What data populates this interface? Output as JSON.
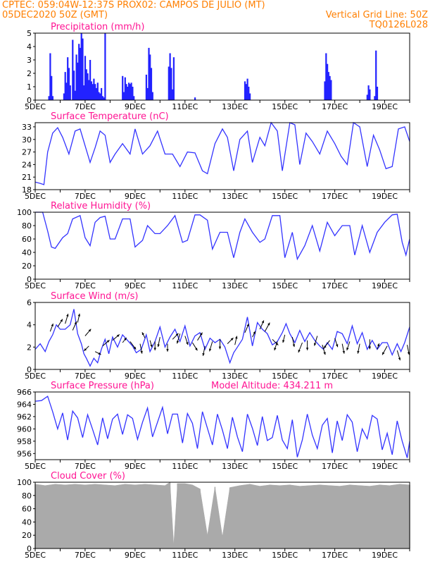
{
  "header": {
    "line1_left": "CPTEC:   059:04W-12:37S   PROX02: CAMPOS DE JULIO (MT)",
    "line2_left": "05DEC2020 50Z (GMT)",
    "line2_right": "Vertical Grid Line: 50Z",
    "line3_right": "TQ0126L028"
  },
  "x_axis": {
    "labels": [
      "5DEC",
      "7DEC",
      "9DEC",
      "11DEC",
      "13DEC",
      "15DEC",
      "17DEC",
      "19DEC"
    ],
    "label_days": [
      5,
      7,
      9,
      11,
      13,
      15,
      17,
      19
    ],
    "range": [
      5.0,
      20.0
    ]
  },
  "colors": {
    "line": "#3333ff",
    "bar": "#2222ff",
    "cloud": "#aaaaaa",
    "title": "#ff1493",
    "header": "#ff7f00"
  },
  "chart_data": [
    {
      "type": "bar",
      "title": "Precipitation (mm/h)",
      "ylim": [
        0,
        5
      ],
      "yticks": [
        "0",
        "1",
        "2",
        "3",
        "4",
        "5"
      ],
      "x_day": [
        5.55,
        5.6,
        5.65,
        5.7,
        6.15,
        6.2,
        6.25,
        6.3,
        6.35,
        6.4,
        6.5,
        6.55,
        6.6,
        6.65,
        6.7,
        6.75,
        6.8,
        6.85,
        6.9,
        6.95,
        7.0,
        7.05,
        7.1,
        7.15,
        7.2,
        7.25,
        7.3,
        7.35,
        7.4,
        7.45,
        7.5,
        7.55,
        7.6,
        7.65,
        7.7,
        7.75,
        7.8,
        8.5,
        8.55,
        8.6,
        8.65,
        8.7,
        8.75,
        8.8,
        8.85,
        8.9,
        8.95,
        9.45,
        9.5,
        9.55,
        9.6,
        9.65,
        9.7,
        10.35,
        10.4,
        10.45,
        10.5,
        10.55,
        11.4,
        13.4,
        13.45,
        13.5,
        13.55,
        13.6,
        16.6,
        16.65,
        16.7,
        16.75,
        16.8,
        16.85,
        18.3,
        18.35,
        18.4,
        18.6,
        18.65,
        18.7
      ],
      "values": [
        0.3,
        3.5,
        1.8,
        0.3,
        0.5,
        2.1,
        1.3,
        3.2,
        2.4,
        1.1,
        4.5,
        2.2,
        0.7,
        3.4,
        2.8,
        4.2,
        3.9,
        5.0,
        4.6,
        1.1,
        3.3,
        2.3,
        2.0,
        1.5,
        3.0,
        1.4,
        1.2,
        1.6,
        1.2,
        0.9,
        1.3,
        0.6,
        0.5,
        0.9,
        0.3,
        0.2,
        5.0,
        1.8,
        0.6,
        1.7,
        1.2,
        1.0,
        1.3,
        1.2,
        1.3,
        1.0,
        0.3,
        1.9,
        0.9,
        3.9,
        3.4,
        2.4,
        0.6,
        2.5,
        3.5,
        2.4,
        0.8,
        3.2,
        0.2,
        1.4,
        1.2,
        1.6,
        1.0,
        0.5,
        1.4,
        3.5,
        2.7,
        2.1,
        1.8,
        1.5,
        0.4,
        1.1,
        0.8,
        0.3,
        3.7,
        1.0
      ]
    },
    {
      "type": "line",
      "title": "Surface Temperature (nC)",
      "ylim": [
        18,
        34
      ],
      "yticks": [
        "18",
        "21",
        "24",
        "27",
        "30",
        "33"
      ],
      "x_day": [
        5.0,
        5.2,
        5.35,
        5.5,
        5.7,
        5.9,
        6.1,
        6.35,
        6.6,
        6.8,
        7.0,
        7.2,
        7.4,
        7.6,
        7.8,
        8.0,
        8.2,
        8.5,
        8.8,
        9.0,
        9.3,
        9.6,
        9.9,
        10.2,
        10.5,
        10.8,
        11.1,
        11.4,
        11.7,
        11.9,
        12.2,
        12.5,
        12.7,
        12.95,
        13.2,
        13.5,
        13.7,
        14.0,
        14.2,
        14.45,
        14.7,
        14.9,
        15.2,
        15.4,
        15.6,
        15.85,
        16.1,
        16.4,
        16.7,
        17.0,
        17.25,
        17.5,
        17.75,
        18.0,
        18.3,
        18.55,
        18.8,
        19.05,
        19.3,
        19.55,
        19.8,
        20.0
      ],
      "values": [
        19.8,
        19.5,
        19.2,
        27.0,
        31.5,
        32.8,
        30.5,
        26.5,
        32.0,
        32.5,
        28.5,
        24.5,
        28.0,
        32.0,
        31.0,
        24.5,
        26.5,
        29.0,
        26.5,
        32.5,
        26.5,
        28.5,
        32.0,
        26.5,
        26.5,
        23.5,
        27.0,
        26.8,
        22.5,
        21.8,
        29.0,
        32.5,
        30.5,
        22.5,
        30.0,
        32.0,
        24.5,
        30.5,
        28.5,
        34.0,
        32.0,
        22.5,
        34.0,
        33.5,
        24.0,
        31.5,
        29.5,
        26.5,
        32.0,
        29.0,
        26.0,
        24.0,
        34.0,
        33.0,
        23.5,
        31.0,
        27.5,
        23.0,
        23.5,
        32.5,
        33.0,
        29.5
      ]
    },
    {
      "type": "line",
      "title": "Relative Humidity (%)",
      "ylim": [
        0,
        100
      ],
      "yticks": [
        "0",
        "20",
        "40",
        "60",
        "80",
        "100"
      ],
      "x_day": [
        5.0,
        5.3,
        5.5,
        5.65,
        5.8,
        6.1,
        6.3,
        6.5,
        6.8,
        7.0,
        7.2,
        7.4,
        7.6,
        7.8,
        8.0,
        8.2,
        8.5,
        8.8,
        9.0,
        9.3,
        9.5,
        9.8,
        10.0,
        10.3,
        10.6,
        10.9,
        11.1,
        11.4,
        11.6,
        11.9,
        12.1,
        12.4,
        12.7,
        12.95,
        13.2,
        13.4,
        13.7,
        14.0,
        14.2,
        14.5,
        14.8,
        15.0,
        15.3,
        15.5,
        15.8,
        16.1,
        16.4,
        16.7,
        17.0,
        17.3,
        17.6,
        17.8,
        18.1,
        18.4,
        18.7,
        19.0,
        19.3,
        19.5,
        19.7,
        19.85,
        20.0
      ],
      "values": [
        100,
        100,
        72,
        48,
        46,
        62,
        68,
        90,
        95,
        62,
        50,
        85,
        92,
        94,
        60,
        60,
        90,
        90,
        48,
        58,
        80,
        68,
        68,
        80,
        95,
        55,
        58,
        96,
        96,
        88,
        45,
        70,
        70,
        32,
        70,
        90,
        70,
        55,
        60,
        95,
        95,
        32,
        70,
        30,
        50,
        80,
        42,
        85,
        65,
        80,
        80,
        36,
        80,
        40,
        70,
        85,
        96,
        97,
        55,
        36,
        60
      ]
    },
    {
      "type": "line",
      "title": "Surface Wind (m/s)",
      "ylim": [
        0,
        6
      ],
      "yticks": [
        "0",
        "2",
        "4",
        "6"
      ],
      "x_day": [
        5.0,
        5.2,
        5.4,
        5.55,
        5.7,
        5.85,
        6.0,
        6.2,
        6.4,
        6.55,
        6.7,
        6.85,
        6.95,
        7.05,
        7.2,
        7.35,
        7.5,
        7.65,
        7.8,
        7.95,
        8.1,
        8.3,
        8.5,
        8.7,
        8.9,
        9.05,
        9.25,
        9.45,
        9.6,
        9.8,
        10.0,
        10.2,
        10.4,
        10.6,
        10.8,
        11.0,
        11.2,
        11.4,
        11.6,
        11.8,
        12.0,
        12.2,
        12.4,
        12.6,
        12.8,
        12.95,
        13.1,
        13.3,
        13.5,
        13.7,
        13.9,
        14.1,
        14.3,
        14.5,
        14.7,
        14.9,
        15.05,
        15.2,
        15.4,
        15.6,
        15.8,
        16.0,
        16.2,
        16.4,
        16.55,
        16.7,
        16.9,
        17.1,
        17.3,
        17.5,
        17.7,
        17.9,
        18.1,
        18.3,
        18.5,
        18.7,
        18.9,
        19.1,
        19.3,
        19.5,
        19.65,
        19.8,
        20.0
      ],
      "values": [
        1.8,
        2.3,
        1.6,
        2.5,
        3.1,
        4.0,
        3.6,
        3.6,
        4.0,
        5.4,
        3.2,
        2.3,
        1.4,
        1.0,
        0.3,
        1.0,
        0.6,
        1.8,
        2.7,
        1.4,
        2.9,
        2.0,
        3.1,
        2.6,
        2.1,
        1.5,
        1.8,
        3.1,
        1.6,
        2.5,
        3.8,
        2.0,
        2.9,
        3.6,
        2.5,
        3.9,
        2.1,
        3.0,
        3.3,
        1.8,
        2.8,
        2.4,
        2.7,
        2.0,
        0.6,
        1.5,
        2.0,
        2.7,
        4.7,
        2.1,
        4.2,
        3.6,
        3.2,
        2.2,
        2.5,
        3.3,
        4.1,
        3.2,
        2.4,
        3.5,
        2.5,
        3.3,
        2.6,
        2.1,
        1.8,
        2.4,
        1.8,
        3.4,
        3.2,
        2.3,
        3.9,
        2.3,
        3.3,
        1.8,
        2.6,
        1.8,
        2.4,
        2.4,
        1.3,
        2.3,
        1.6,
        2.4,
        3.8
      ]
    },
    {
      "type": "line",
      "title": "Surface Pressure (hPa)",
      "annotation": "Model Altitude: 434.211  m",
      "ylim": [
        955,
        966
      ],
      "yticks": [
        "956",
        "958",
        "960",
        "962",
        "964",
        "966"
      ],
      "x_day": [
        5.0,
        5.25,
        5.5,
        5.7,
        5.9,
        6.1,
        6.3,
        6.5,
        6.7,
        6.9,
        7.1,
        7.3,
        7.5,
        7.7,
        7.9,
        8.1,
        8.3,
        8.5,
        8.7,
        8.9,
        9.1,
        9.3,
        9.5,
        9.7,
        9.9,
        10.1,
        10.3,
        10.5,
        10.7,
        10.9,
        11.1,
        11.3,
        11.5,
        11.7,
        11.9,
        12.1,
        12.3,
        12.5,
        12.7,
        12.9,
        13.1,
        13.3,
        13.5,
        13.7,
        13.9,
        14.1,
        14.3,
        14.5,
        14.7,
        14.9,
        15.1,
        15.3,
        15.5,
        15.7,
        15.9,
        16.1,
        16.3,
        16.5,
        16.7,
        16.9,
        17.1,
        17.3,
        17.5,
        17.7,
        17.9,
        18.1,
        18.3,
        18.5,
        18.7,
        18.9,
        19.1,
        19.3,
        19.5,
        19.7,
        19.9,
        20.0
      ],
      "values": [
        964.5,
        964.6,
        965.3,
        962.8,
        960.0,
        962.6,
        958.2,
        962.9,
        961.8,
        958.6,
        962.3,
        959.9,
        957.4,
        961.8,
        958.4,
        961.6,
        962.4,
        959.1,
        962.3,
        961.7,
        958.3,
        961.1,
        963.4,
        958.7,
        961.1,
        963.5,
        959.2,
        962.4,
        962.4,
        957.7,
        962.5,
        960.9,
        956.8,
        962.8,
        960.1,
        957.4,
        962.4,
        959.8,
        956.8,
        961.9,
        958.7,
        956.3,
        962.4,
        960.1,
        957.3,
        962.0,
        958.1,
        958.6,
        962.2,
        958.2,
        956.8,
        961.5,
        955.4,
        958.2,
        962.4,
        959.0,
        956.8,
        960.6,
        961.7,
        956.1,
        961.3,
        958.1,
        962.3,
        961.1,
        956.3,
        960.0,
        958.4,
        962.2,
        961.6,
        956.6,
        959.3,
        955.8,
        961.3,
        958.0,
        955.3,
        958.0
      ]
    },
    {
      "type": "bar",
      "title": "Cloud Cover (%)",
      "ylim": [
        0,
        100
      ],
      "yticks": [
        "0",
        "20",
        "40",
        "60",
        "80",
        "100"
      ],
      "x_day": [
        5.0,
        5.4,
        5.8,
        6.2,
        6.6,
        7.0,
        7.4,
        7.8,
        8.2,
        8.6,
        9.0,
        9.4,
        9.8,
        10.2,
        10.4,
        10.55,
        10.7,
        11.0,
        11.3,
        11.6,
        11.9,
        12.2,
        12.5,
        12.8,
        13.2,
        13.6,
        14.0,
        14.4,
        14.8,
        15.2,
        15.6,
        16.0,
        16.4,
        16.8,
        17.2,
        17.6,
        18.0,
        18.4,
        18.8,
        19.2,
        19.6,
        20.0
      ],
      "values": [
        97,
        95,
        97,
        96,
        97,
        96,
        97,
        96,
        95,
        97,
        96,
        97,
        96,
        95,
        100,
        5,
        98,
        98,
        96,
        90,
        20,
        93,
        18,
        92,
        95,
        97,
        94,
        96,
        95,
        96,
        94,
        95,
        96,
        95,
        94,
        96,
        95,
        94,
        96,
        95,
        97,
        96
      ]
    }
  ],
  "wind_arrows": {
    "x_day": [
      5.6,
      5.9,
      6.2,
      6.5,
      6.7,
      7.0,
      7.15,
      7.4,
      7.7,
      8.1,
      8.5,
      8.8,
      9.2,
      9.4,
      9.6,
      9.8,
      10.0,
      10.3,
      10.5,
      10.8,
      11.0,
      11.3,
      11.5,
      11.8,
      12.1,
      12.4,
      12.7,
      13.0,
      13.4,
      13.7,
      14.0,
      14.2,
      14.5,
      14.7,
      15.0,
      15.3,
      15.7,
      15.9,
      16.3,
      16.5,
      16.8,
      17.0,
      17.3,
      17.6,
      18.0,
      18.4,
      18.7,
      19.1,
      19.5,
      19.9
    ],
    "speed": [
      3.4,
      3.8,
      4.1,
      3.5,
      4.2,
      3.0,
      2.1,
      1.6,
      2.1,
      2.6,
      2.4,
      2.5,
      2.3,
      2.8,
      2.6,
      2.5,
      2.9,
      2.3,
      2.7,
      3.2,
      3.0,
      2.4,
      2.6,
      2.1,
      2.5,
      2.7,
      2.3,
      2.2,
      3.3,
      2.9,
      3.6,
      3.4,
      2.7,
      2.5,
      3.1,
      2.9,
      2.4,
      2.6,
      3.0,
      2.2,
      2.6,
      2.8,
      2.3,
      2.5,
      2.3,
      2.7,
      1.8,
      2.1,
      1.7,
      2.2
    ],
    "u": [
      0.3,
      0.5,
      0.3,
      0.4,
      0.2,
      0.6,
      -0.5,
      0.6,
      0.7,
      0.7,
      0.4,
      0.6,
      0.2,
      -0.3,
      0.2,
      0.0,
      -0.2,
      0.0,
      0.6,
      -0.3,
      0.3,
      0.5,
      0.5,
      -0.2,
      -0.3,
      0.0,
      0.6,
      0.2,
      0.4,
      0.3,
      0.4,
      0.5,
      0.6,
      -0.3,
      -0.2,
      0.2,
      -0.4,
      0.0,
      -0.3,
      0.3,
      -0.6,
      0.3,
      0.2,
      -0.3,
      -0.2,
      0.0,
      0.2,
      -0.5,
      0.3,
      0.2
    ],
    "v": [
      0.8,
      0.8,
      1.0,
      0.9,
      0.9,
      0.7,
      -0.5,
      -0.3,
      0.6,
      0.6,
      0.5,
      -0.8,
      -1.0,
      0.6,
      -0.7,
      -0.9,
      -1.0,
      -0.8,
      0.6,
      -1.0,
      -0.9,
      -0.8,
      0.8,
      -1.0,
      -1.0,
      -1.0,
      0.6,
      0.9,
      0.9,
      0.6,
      0.9,
      0.9,
      -0.6,
      -0.9,
      -0.8,
      -1.0,
      -1.0,
      -1.0,
      -1.0,
      -1.0,
      -0.8,
      -0.9,
      -1.0,
      -0.9,
      -1.0,
      -1.0,
      0.6,
      -0.9,
      -1.0,
      -1.0
    ]
  }
}
